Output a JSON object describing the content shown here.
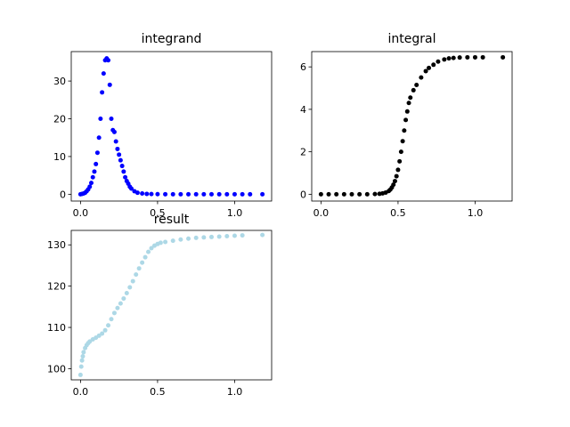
{
  "figure": {
    "background": "#ffffff"
  },
  "chart_data": [
    {
      "type": "scatter",
      "title": "integrand",
      "xlabel": "",
      "ylabel": "",
      "xlim": [
        -0.06,
        1.24
      ],
      "ylim": [
        -1.8,
        37.8
      ],
      "xticks": [
        0.0,
        0.5,
        1.0
      ],
      "xtick_labels": [
        "0.0",
        "0.5",
        "1.0"
      ],
      "yticks": [
        0,
        10,
        20,
        30
      ],
      "ytick_labels": [
        "0",
        "10",
        "20",
        "30"
      ],
      "grid": false,
      "color": "#0000ff",
      "series": [
        {
          "x": [
            0.0,
            0.01,
            0.02,
            0.03,
            0.04,
            0.05,
            0.06,
            0.07,
            0.08,
            0.09,
            0.1,
            0.11,
            0.12,
            0.13,
            0.14,
            0.15,
            0.16,
            0.17,
            0.18,
            0.19,
            0.2,
            0.21,
            0.22,
            0.23,
            0.24,
            0.25,
            0.26,
            0.27,
            0.28,
            0.29,
            0.3,
            0.31,
            0.32,
            0.33,
            0.35,
            0.37,
            0.4,
            0.43,
            0.46,
            0.5,
            0.55,
            0.6,
            0.65,
            0.7,
            0.75,
            0.8,
            0.85,
            0.9,
            0.95,
            1.0,
            1.05,
            1.1,
            1.18
          ],
          "y": [
            0.0,
            0.1,
            0.2,
            0.4,
            0.8,
            1.3,
            2.0,
            3.0,
            4.5,
            6.0,
            8.0,
            11.0,
            15.0,
            20.0,
            27.0,
            32.0,
            35.5,
            36.0,
            35.5,
            29.0,
            20.0,
            17.0,
            16.5,
            14.0,
            12.0,
            10.5,
            9.0,
            7.5,
            6.0,
            4.5,
            3.5,
            2.8,
            2.0,
            1.5,
            0.8,
            0.4,
            0.2,
            0.1,
            0.05,
            0.02,
            0.01,
            0.0,
            0.0,
            0.0,
            0.0,
            0.0,
            0.0,
            0.0,
            0.0,
            0.0,
            0.0,
            0.0,
            0.0
          ]
        }
      ]
    },
    {
      "type": "scatter",
      "title": "integral",
      "xlabel": "",
      "ylabel": "",
      "xlim": [
        -0.06,
        1.24
      ],
      "ylim": [
        -0.32,
        6.72
      ],
      "xticks": [
        0.0,
        0.5,
        1.0
      ],
      "xtick_labels": [
        "0.0",
        "0.5",
        "1.0"
      ],
      "yticks": [
        0,
        2,
        4,
        6
      ],
      "ytick_labels": [
        "0",
        "2",
        "4",
        "6"
      ],
      "grid": false,
      "color": "#000000",
      "series": [
        {
          "x": [
            0.0,
            0.05,
            0.1,
            0.15,
            0.2,
            0.25,
            0.3,
            0.35,
            0.38,
            0.4,
            0.42,
            0.44,
            0.45,
            0.46,
            0.47,
            0.48,
            0.49,
            0.5,
            0.51,
            0.52,
            0.53,
            0.54,
            0.55,
            0.56,
            0.57,
            0.58,
            0.6,
            0.62,
            0.65,
            0.68,
            0.7,
            0.73,
            0.76,
            0.8,
            0.83,
            0.86,
            0.9,
            0.95,
            1.0,
            1.05,
            1.18
          ],
          "y": [
            0.0,
            0.0,
            0.0,
            0.0,
            0.0,
            0.0,
            0.0,
            0.01,
            0.02,
            0.04,
            0.08,
            0.15,
            0.22,
            0.32,
            0.45,
            0.62,
            0.85,
            1.15,
            1.55,
            2.0,
            2.5,
            3.0,
            3.5,
            3.9,
            4.3,
            4.55,
            4.9,
            5.15,
            5.5,
            5.8,
            5.95,
            6.1,
            6.25,
            6.35,
            6.4,
            6.42,
            6.44,
            6.45,
            6.45,
            6.45,
            6.45
          ]
        }
      ]
    },
    {
      "type": "scatter",
      "title": "result",
      "xlabel": "",
      "ylabel": "",
      "xlim": [
        -0.06,
        1.24
      ],
      "ylim": [
        97.3,
        133.5
      ],
      "xticks": [
        0.0,
        0.5,
        1.0
      ],
      "xtick_labels": [
        "0.0",
        "0.5",
        "1.0"
      ],
      "yticks": [
        100,
        110,
        120,
        130
      ],
      "ytick_labels": [
        "100",
        "110",
        "120",
        "130"
      ],
      "grid": false,
      "color": "#add8e6",
      "series": [
        {
          "x": [
            0.0,
            0.005,
            0.01,
            0.015,
            0.02,
            0.03,
            0.04,
            0.05,
            0.06,
            0.08,
            0.1,
            0.12,
            0.14,
            0.16,
            0.18,
            0.2,
            0.22,
            0.24,
            0.26,
            0.28,
            0.3,
            0.32,
            0.34,
            0.36,
            0.38,
            0.4,
            0.42,
            0.44,
            0.46,
            0.48,
            0.5,
            0.52,
            0.55,
            0.6,
            0.65,
            0.7,
            0.75,
            0.8,
            0.85,
            0.9,
            0.95,
            1.0,
            1.05,
            1.18
          ],
          "y": [
            98.5,
            100.5,
            102.0,
            103.0,
            104.0,
            105.0,
            105.7,
            106.2,
            106.6,
            107.1,
            107.5,
            108.0,
            108.5,
            109.3,
            110.5,
            112.0,
            113.5,
            114.7,
            115.8,
            117.0,
            118.3,
            119.7,
            121.2,
            122.8,
            124.3,
            125.7,
            127.0,
            128.3,
            129.2,
            129.8,
            130.2,
            130.5,
            130.7,
            131.0,
            131.3,
            131.5,
            131.7,
            131.8,
            131.9,
            132.0,
            132.1,
            132.2,
            132.3,
            132.4
          ]
        }
      ]
    }
  ]
}
